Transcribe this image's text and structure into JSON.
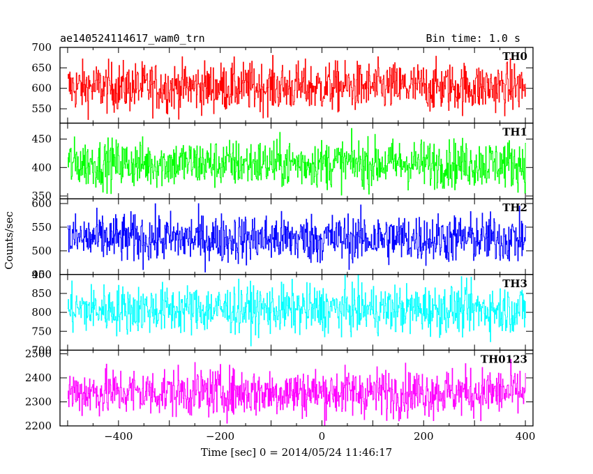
{
  "header": {
    "title": "ae140524114617_wam0_trn",
    "bin_time": "Bin time: 1.0 s"
  },
  "chart_data": {
    "type": "line",
    "xlabel": "Time [sec] 0 = 2014/05/24 11:46:17",
    "ylabel": "Counts/sec",
    "xlim": [
      -515,
      415
    ],
    "x_ticks": [
      -400,
      -200,
      0,
      200,
      400
    ],
    "x_range": [
      -500,
      400
    ],
    "bin_time_s": 1.0,
    "panels": [
      {
        "name": "TH0",
        "color": "#ff0000",
        "ylim": [
          515,
          700
        ],
        "yticks": [
          550,
          600,
          650,
          700
        ],
        "mean": 603,
        "sd": 30
      },
      {
        "name": "TH1",
        "color": "#00ff00",
        "ylim": [
          345,
          478
        ],
        "yticks": [
          350,
          400,
          450
        ],
        "mean": 407,
        "sd": 21
      },
      {
        "name": "TH2",
        "color": "#0000ff",
        "ylim": [
          450,
          610
        ],
        "yticks": [
          450,
          500,
          550,
          600
        ],
        "mean": 526,
        "sd": 26
      },
      {
        "name": "TH3",
        "color": "#00ffff",
        "ylim": [
          700,
          900
        ],
        "yticks": [
          700,
          750,
          800,
          850,
          900
        ],
        "mean": 808,
        "sd": 32
      },
      {
        "name": "TH0123",
        "color": "#ff00ff",
        "ylim": [
          2200,
          2515
        ],
        "yticks": [
          2200,
          2300,
          2400,
          2500
        ],
        "mean": 2340,
        "sd": 50
      }
    ]
  }
}
